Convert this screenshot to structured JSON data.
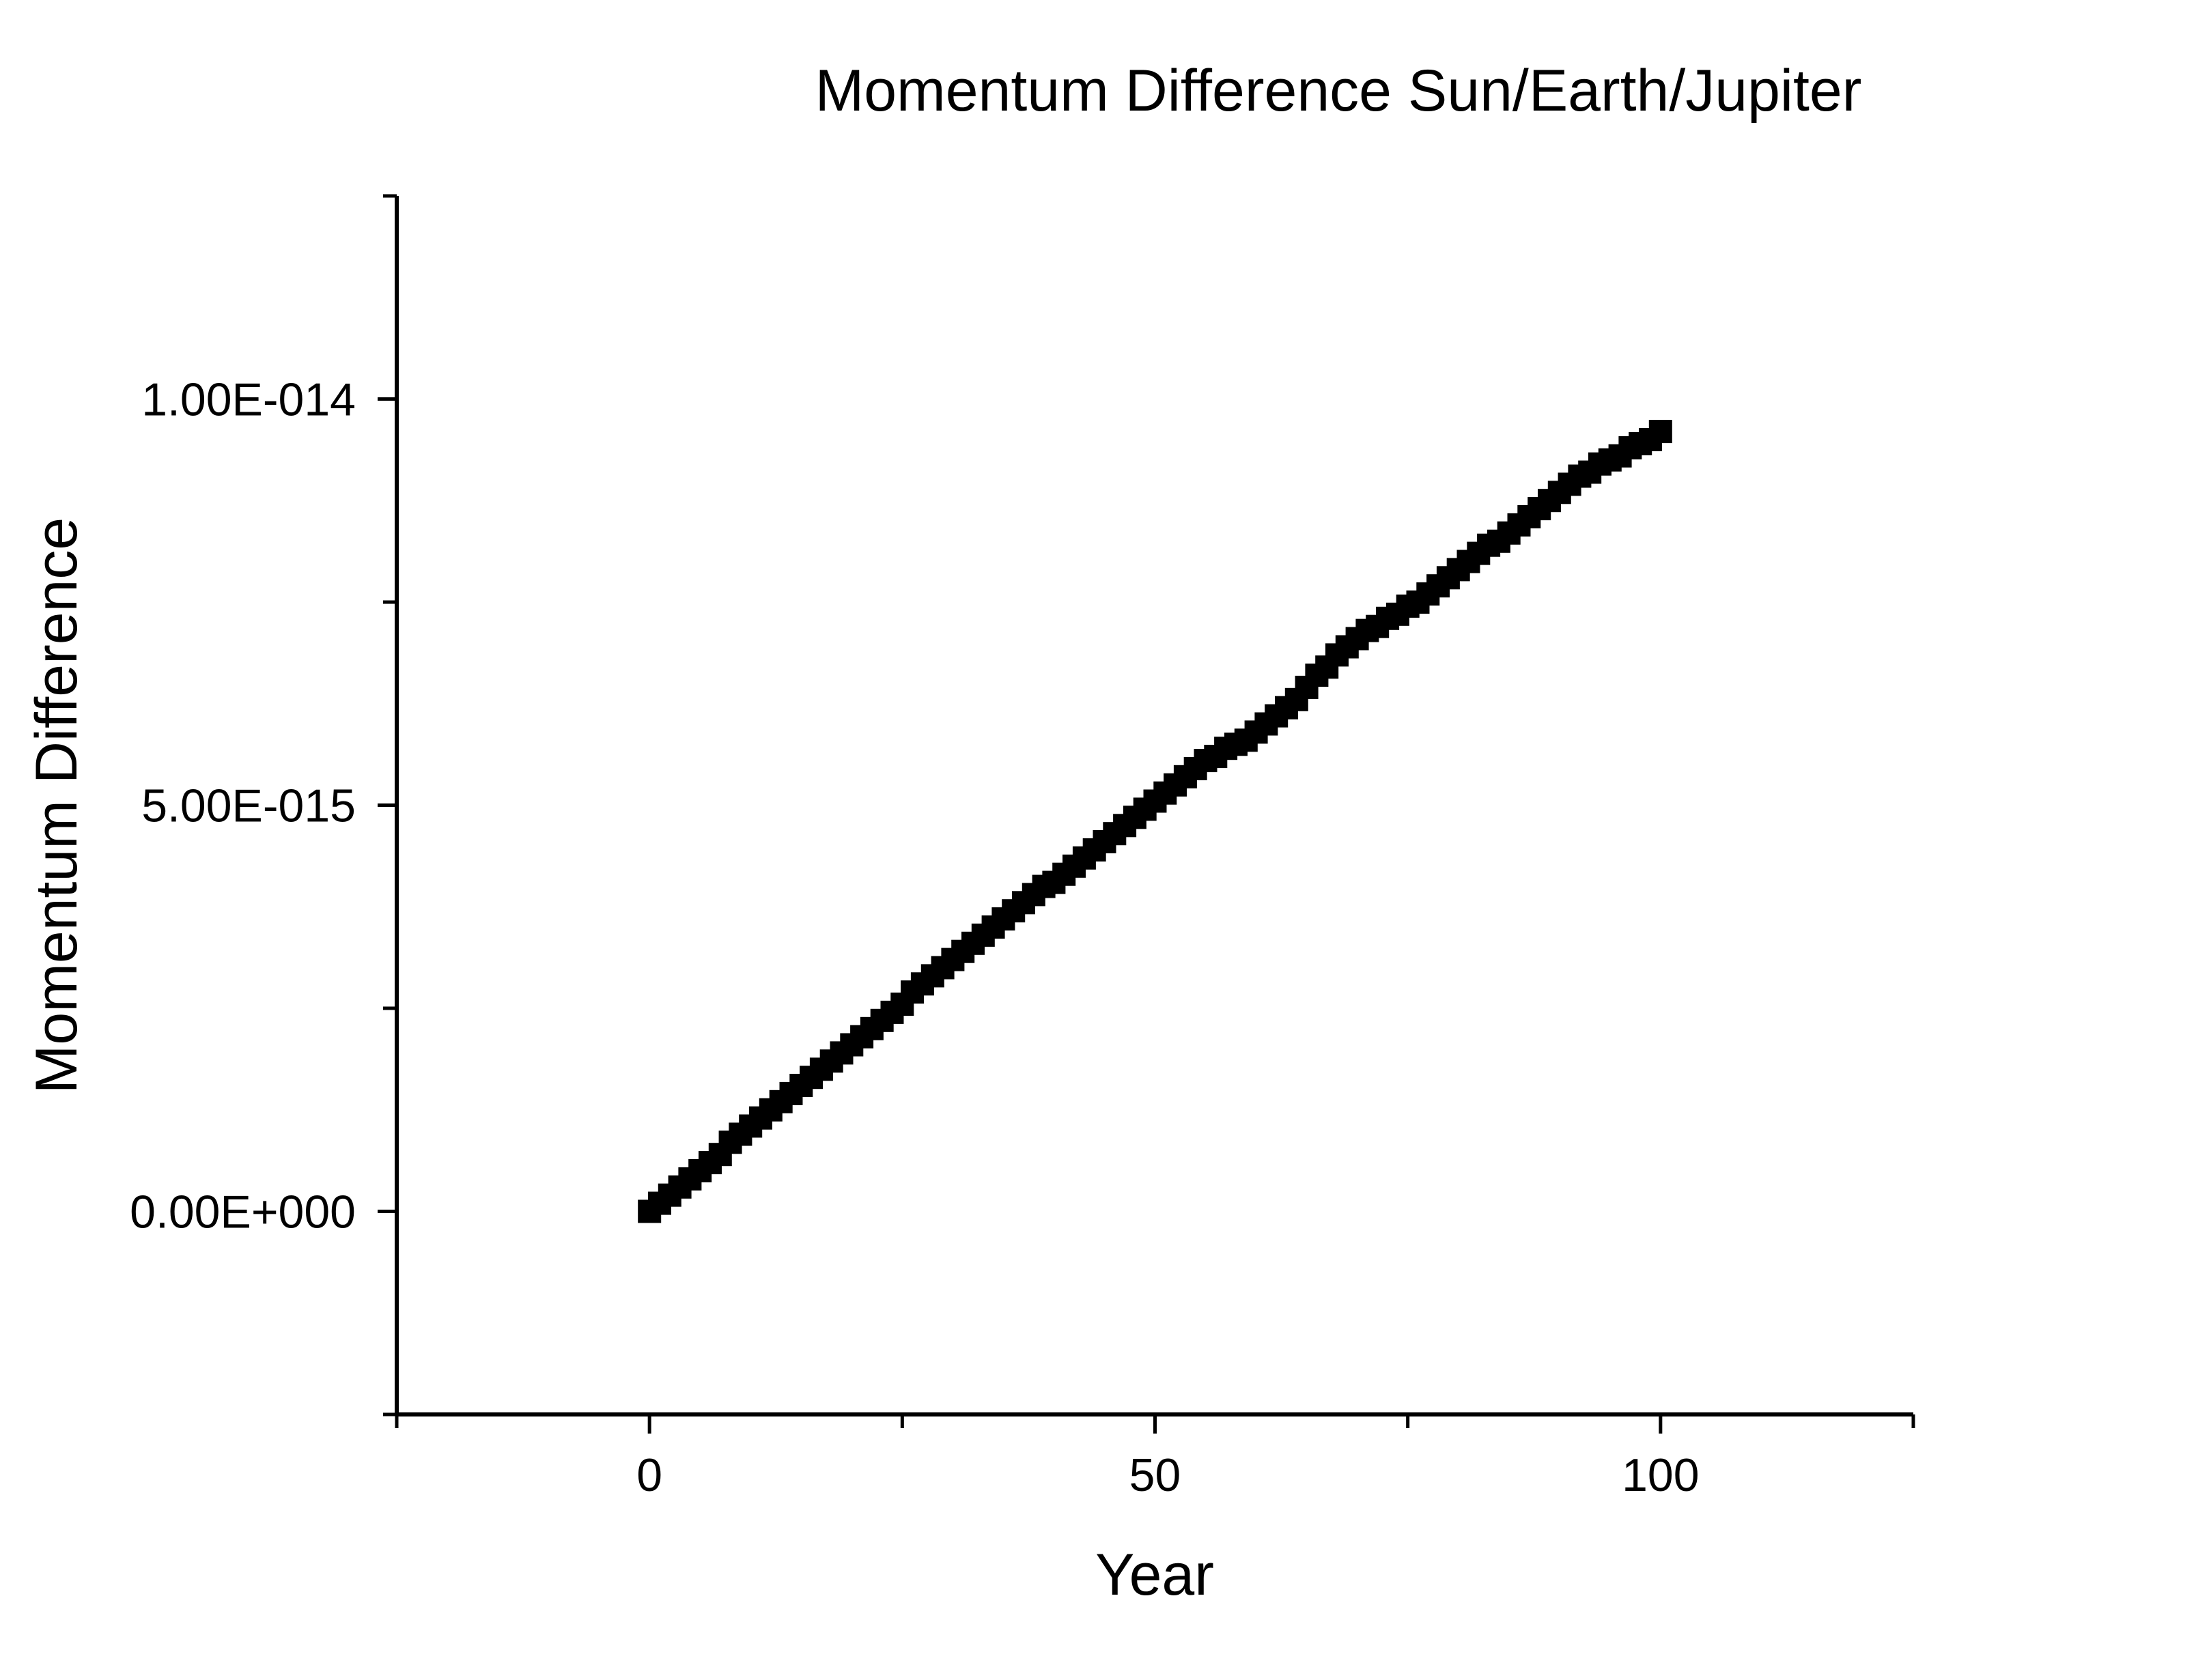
{
  "chart_data": {
    "type": "scatter",
    "title": "Momentum Difference Sun/Earth/Jupiter",
    "xlabel": "Year",
    "ylabel": "Momentum Difference",
    "xlim": [
      -25,
      125
    ],
    "ylim": [
      -2.5e-15,
      1.25e-14
    ],
    "x_ticks": [
      {
        "value": 0,
        "label": "0"
      },
      {
        "value": 50,
        "label": "50"
      },
      {
        "value": 100,
        "label": "100"
      }
    ],
    "x_minor_ticks": [
      -25,
      25,
      75,
      125
    ],
    "y_ticks": [
      {
        "value": 0,
        "label": "0.00E+000"
      },
      {
        "value": 5e-15,
        "label": "5.00E-015"
      },
      {
        "value": 1e-14,
        "label": "1.00E-014"
      }
    ],
    "y_minor_ticks": [
      -2.5e-15,
      2.5e-15,
      7.5e-15,
      1.25e-14
    ],
    "grid": false,
    "marker": "square",
    "color": "#000000",
    "series": [
      {
        "x": [
          0,
          1,
          2,
          3,
          4,
          5,
          6,
          7,
          8,
          9,
          10,
          11,
          12,
          13,
          14,
          15,
          16,
          17,
          18,
          19,
          20,
          21,
          22,
          23,
          24,
          25,
          26,
          27,
          28,
          29,
          30,
          31,
          32,
          33,
          34,
          35,
          36,
          37,
          38,
          39,
          40,
          41,
          42,
          43,
          44,
          45,
          46,
          47,
          48,
          49,
          50,
          51,
          52,
          53,
          54,
          55,
          56,
          57,
          58,
          59,
          60,
          61,
          62,
          63,
          64,
          65,
          66,
          67,
          68,
          69,
          70,
          71,
          72,
          73,
          74,
          75,
          76,
          77,
          78,
          79,
          80,
          81,
          82,
          83,
          84,
          85,
          86,
          87,
          88,
          89,
          90,
          91,
          92,
          93,
          94,
          95,
          96,
          97,
          98,
          99,
          100
        ],
        "y": [
          0.0,
          1e-16,
          2e-16,
          3e-16,
          4e-16,
          5e-16,
          6e-16,
          7e-16,
          8.5e-16,
          9.5e-16,
          1.05e-15,
          1.15e-15,
          1.25e-15,
          1.35e-15,
          1.45e-15,
          1.55e-15,
          1.65e-15,
          1.75e-15,
          1.85e-15,
          1.95e-15,
          2.05e-15,
          2.15e-15,
          2.25e-15,
          2.35e-15,
          2.45e-15,
          2.55e-15,
          2.7e-15,
          2.8e-15,
          2.9e-15,
          3e-15,
          3.1e-15,
          3.2e-15,
          3.3e-15,
          3.4e-15,
          3.5e-15,
          3.6e-15,
          3.7e-15,
          3.8e-15,
          3.9e-15,
          4e-15,
          4.05e-15,
          4.15e-15,
          4.25e-15,
          4.35e-15,
          4.45e-15,
          4.55e-15,
          4.65e-15,
          4.75e-15,
          4.85e-15,
          4.95e-15,
          5.05e-15,
          5.15e-15,
          5.25e-15,
          5.35e-15,
          5.45e-15,
          5.55e-15,
          5.6e-15,
          5.7e-15,
          5.75e-15,
          5.8e-15,
          5.9e-15,
          6e-15,
          6.1e-15,
          6.2e-15,
          6.3e-15,
          6.45e-15,
          6.6e-15,
          6.7e-15,
          6.85e-15,
          6.95e-15,
          7.05e-15,
          7.15e-15,
          7.2e-15,
          7.3e-15,
          7.35e-15,
          7.45e-15,
          7.5e-15,
          7.6e-15,
          7.7e-15,
          7.8e-15,
          7.9e-15,
          8e-15,
          8.1e-15,
          8.2e-15,
          8.25e-15,
          8.35e-15,
          8.45e-15,
          8.55e-15,
          8.65e-15,
          8.75e-15,
          8.85e-15,
          8.95e-15,
          9.05e-15,
          9.1e-15,
          9.2e-15,
          9.25e-15,
          9.3e-15,
          9.4e-15,
          9.45e-15,
          9.5e-15,
          9.6e-15
        ]
      }
    ]
  }
}
